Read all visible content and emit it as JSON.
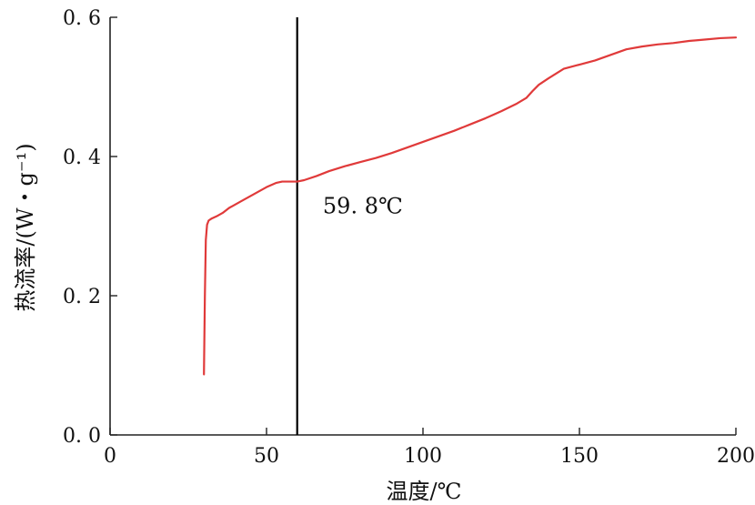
{
  "chart_data": {
    "type": "line",
    "title": "",
    "xlabel": "温度/℃",
    "ylabel": "热流率/(W・g⁻¹)",
    "xlim": [
      0,
      200
    ],
    "ylim": [
      0,
      0.6
    ],
    "x_ticks": [
      0,
      50,
      100,
      150,
      200
    ],
    "y_ticks": [
      0.0,
      0.2,
      0.4,
      0.6
    ],
    "x_tick_labels": [
      "0",
      "50",
      "100",
      "150",
      "200"
    ],
    "y_tick_labels": [
      "0. 0",
      "0. 2",
      "0. 4",
      "0. 6"
    ],
    "grid": false,
    "series": [
      {
        "color": "#e03a3a",
        "x": [
          30.0,
          30.3,
          30.6,
          31.0,
          31.5,
          32.5,
          34.0,
          36.0,
          38.0,
          42.0,
          46.0,
          50.0,
          53.0,
          55.0,
          57.0,
          59.8,
          62.0,
          66.0,
          70.0,
          75.0,
          80.0,
          85.0,
          90.0,
          95.0,
          100.0,
          105.0,
          110.0,
          115.0,
          120.0,
          125.0,
          130.0,
          133.0,
          135.0,
          137.0,
          140.0,
          145.0,
          150.0,
          155.0,
          160.0,
          165.0,
          170.0,
          175.0,
          180.0,
          185.0,
          190.0,
          195.0,
          200.0
        ],
        "y": [
          0.087,
          0.2,
          0.28,
          0.302,
          0.308,
          0.311,
          0.314,
          0.319,
          0.326,
          0.336,
          0.346,
          0.356,
          0.362,
          0.364,
          0.364,
          0.364,
          0.366,
          0.372,
          0.379,
          0.386,
          0.392,
          0.398,
          0.405,
          0.413,
          0.421,
          0.429,
          0.437,
          0.446,
          0.455,
          0.465,
          0.476,
          0.484,
          0.494,
          0.503,
          0.512,
          0.526,
          0.532,
          0.538,
          0.546,
          0.554,
          0.558,
          0.561,
          0.563,
          0.566,
          0.568,
          0.57,
          0.571
        ]
      }
    ],
    "vline": {
      "x": 59.8,
      "color": "#000000"
    },
    "annotations": [
      {
        "text": "59. 8℃",
        "x": 68,
        "y": 0.318
      }
    ]
  }
}
